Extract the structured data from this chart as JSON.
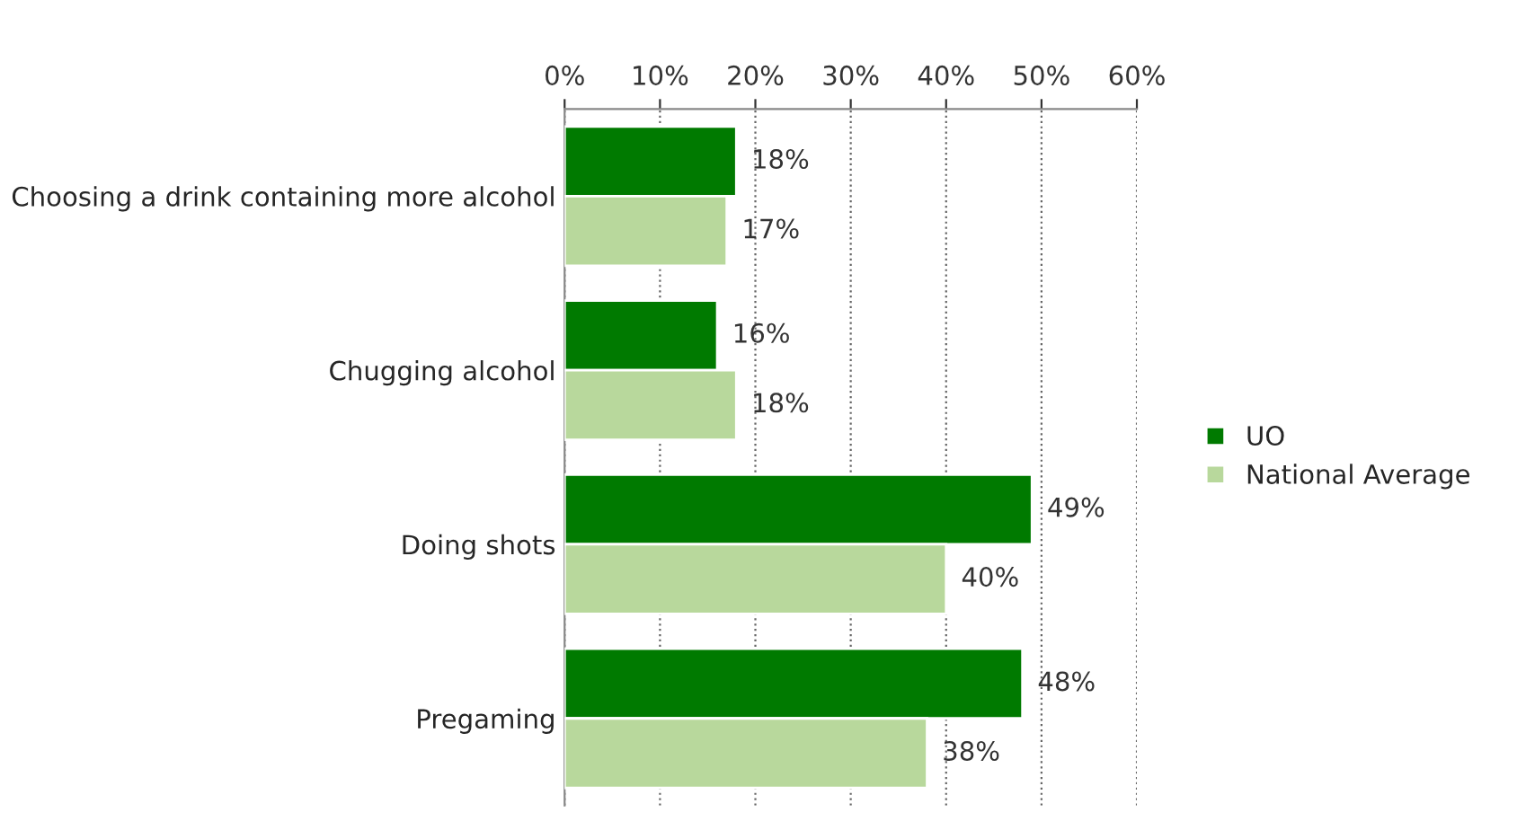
{
  "chart_data": {
    "type": "bar",
    "orientation": "horizontal",
    "categories": [
      "Choosing a drink containing more alcohol",
      "Chugging alcohol",
      "Doing shots",
      "Pregaming"
    ],
    "series": [
      {
        "name": "UO",
        "color": "#007a00",
        "values": [
          18,
          16,
          49,
          48
        ],
        "value_labels": [
          "18%",
          "16%",
          "49%",
          "48%"
        ]
      },
      {
        "name": "National Average",
        "color": "#b8d89c",
        "values": [
          17,
          18,
          40,
          38
        ],
        "value_labels": [
          "17%",
          "18%",
          "40%",
          "38%"
        ]
      }
    ],
    "xlim": [
      0,
      60
    ],
    "xticks": [
      {
        "value": 0,
        "label": "0%"
      },
      {
        "value": 10,
        "label": "10%"
      },
      {
        "value": 20,
        "label": "20%"
      },
      {
        "value": 30,
        "label": "30%"
      },
      {
        "value": 40,
        "label": "40%"
      },
      {
        "value": 50,
        "label": "50%"
      },
      {
        "value": 60,
        "label": "60%"
      }
    ],
    "grid": "x",
    "legend": "right"
  }
}
